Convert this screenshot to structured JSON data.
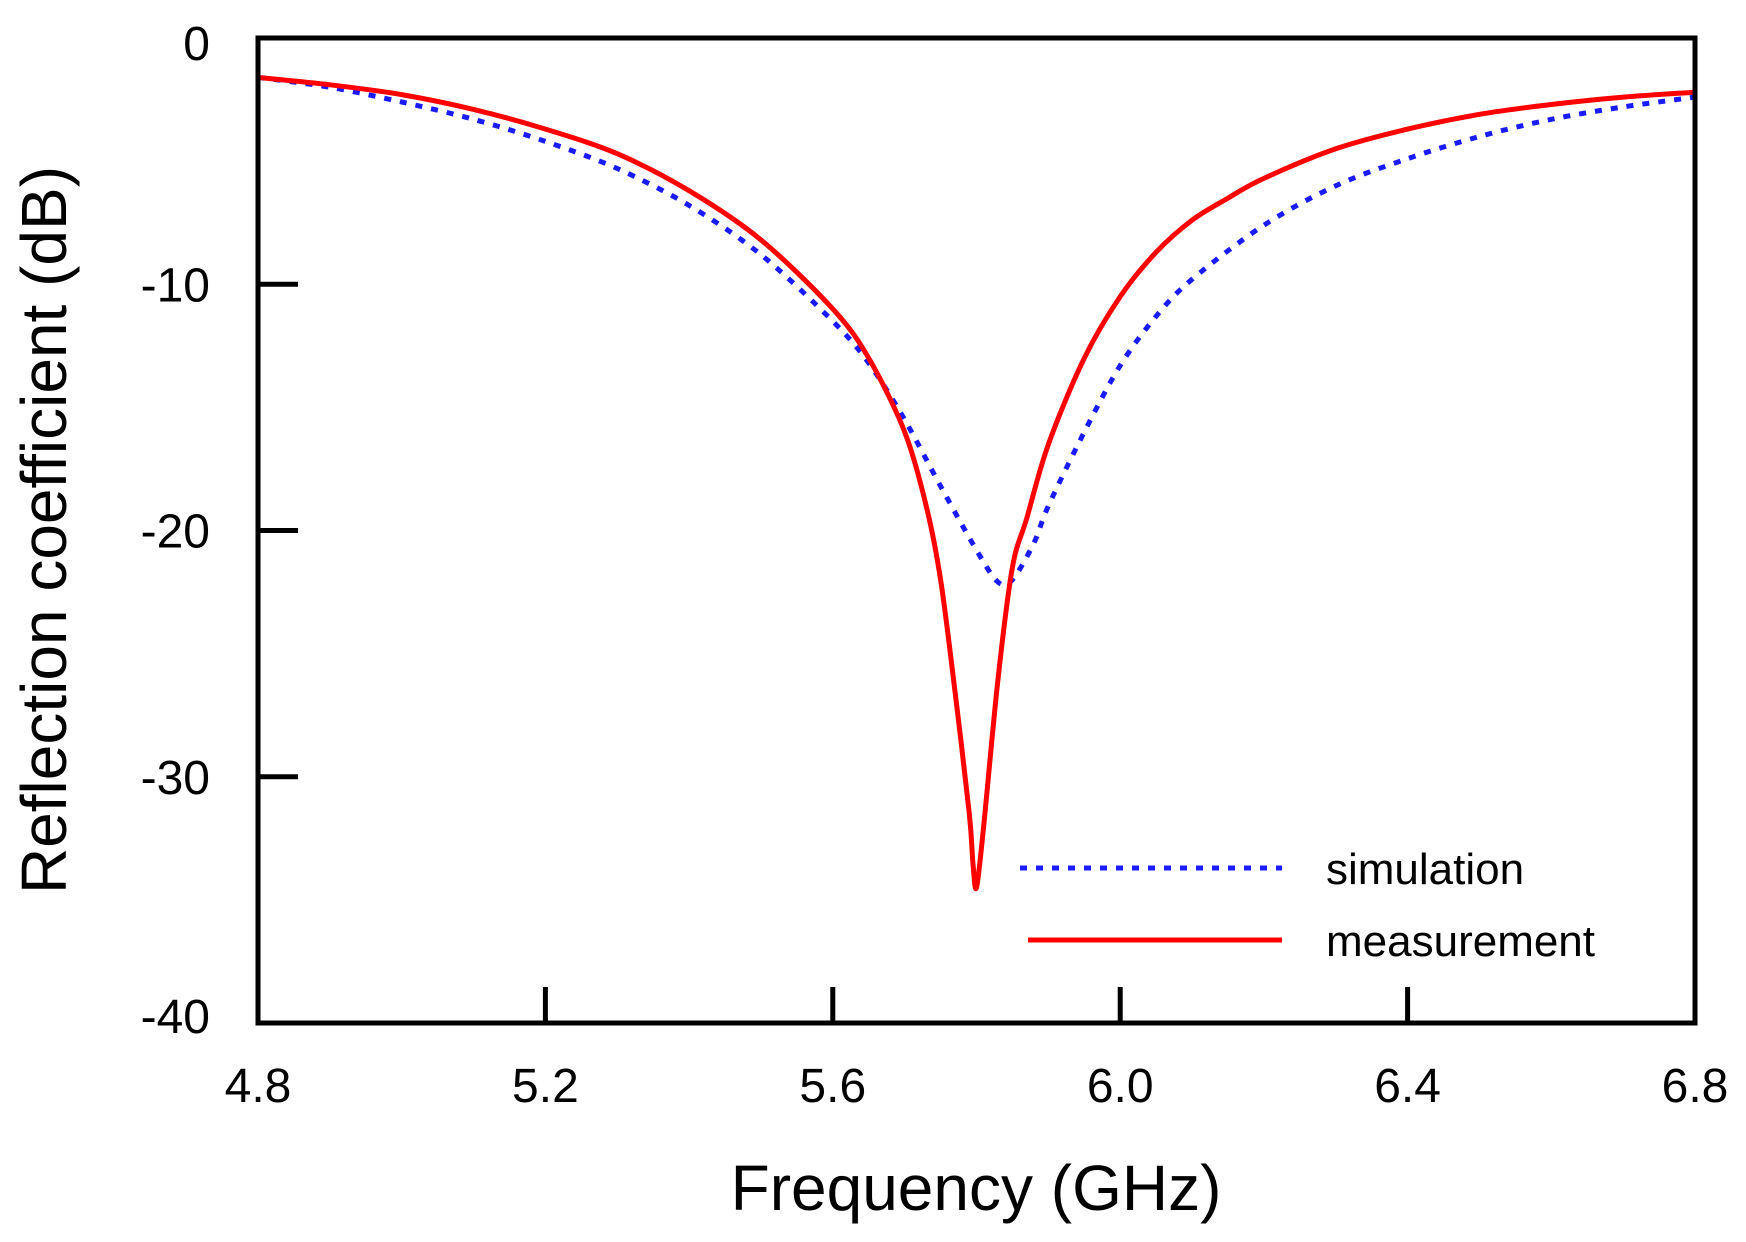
{
  "chart_data": {
    "type": "line",
    "title": "",
    "xlabel": "Frequency (GHz)",
    "ylabel": "Reflection coefficient (dB)",
    "xlim": [
      4.8,
      6.8
    ],
    "ylim": [
      -40,
      0
    ],
    "x_ticks": [
      4.8,
      5.2,
      5.6,
      6.0,
      6.4,
      6.8
    ],
    "x_tick_labels": [
      "4.8",
      "5.2",
      "5.6",
      "6.0",
      "6.4",
      "6.8"
    ],
    "y_ticks": [
      0,
      -10,
      -20,
      -30,
      -40
    ],
    "y_tick_labels": [
      "0",
      "-10",
      "-20",
      "-30",
      "-40"
    ],
    "grid": false,
    "legend_position": "bottom-right",
    "series": [
      {
        "name": "simulation",
        "color": "#1a1aff",
        "style": "dotted",
        "x": [
          4.8,
          4.9,
          5.0,
          5.1,
          5.2,
          5.3,
          5.4,
          5.5,
          5.6,
          5.65,
          5.7,
          5.75,
          5.8,
          5.83,
          5.85,
          5.88,
          5.9,
          5.95,
          6.0,
          6.05,
          6.1,
          6.2,
          6.3,
          6.4,
          6.5,
          6.6,
          6.7,
          6.8
        ],
        "y": [
          -1.6,
          -2.0,
          -2.6,
          -3.3,
          -4.2,
          -5.3,
          -6.8,
          -8.8,
          -11.5,
          -13.2,
          -15.5,
          -18.2,
          -20.8,
          -22.1,
          -22.0,
          -20.5,
          -19.0,
          -16.0,
          -13.3,
          -11.3,
          -9.8,
          -7.6,
          -6.0,
          -4.9,
          -4.0,
          -3.3,
          -2.8,
          -2.4
        ]
      },
      {
        "name": "measurement",
        "color": "#ff0000",
        "style": "solid",
        "x": [
          4.8,
          4.9,
          5.0,
          5.1,
          5.2,
          5.3,
          5.4,
          5.5,
          5.6,
          5.65,
          5.7,
          5.73,
          5.75,
          5.77,
          5.79,
          5.795,
          5.8,
          5.81,
          5.83,
          5.85,
          5.87,
          5.9,
          5.95,
          6.0,
          6.05,
          6.1,
          6.15,
          6.2,
          6.3,
          6.4,
          6.5,
          6.6,
          6.7,
          6.8
        ],
        "y": [
          -1.6,
          -1.9,
          -2.3,
          -2.9,
          -3.7,
          -4.7,
          -6.2,
          -8.2,
          -11.0,
          -13.0,
          -16.0,
          -19.0,
          -22.0,
          -26.5,
          -31.5,
          -33.5,
          -34.5,
          -32.0,
          -26.0,
          -21.5,
          -19.5,
          -16.5,
          -13.0,
          -10.5,
          -8.7,
          -7.4,
          -6.5,
          -5.7,
          -4.5,
          -3.7,
          -3.1,
          -2.7,
          -2.4,
          -2.2
        ]
      }
    ]
  }
}
